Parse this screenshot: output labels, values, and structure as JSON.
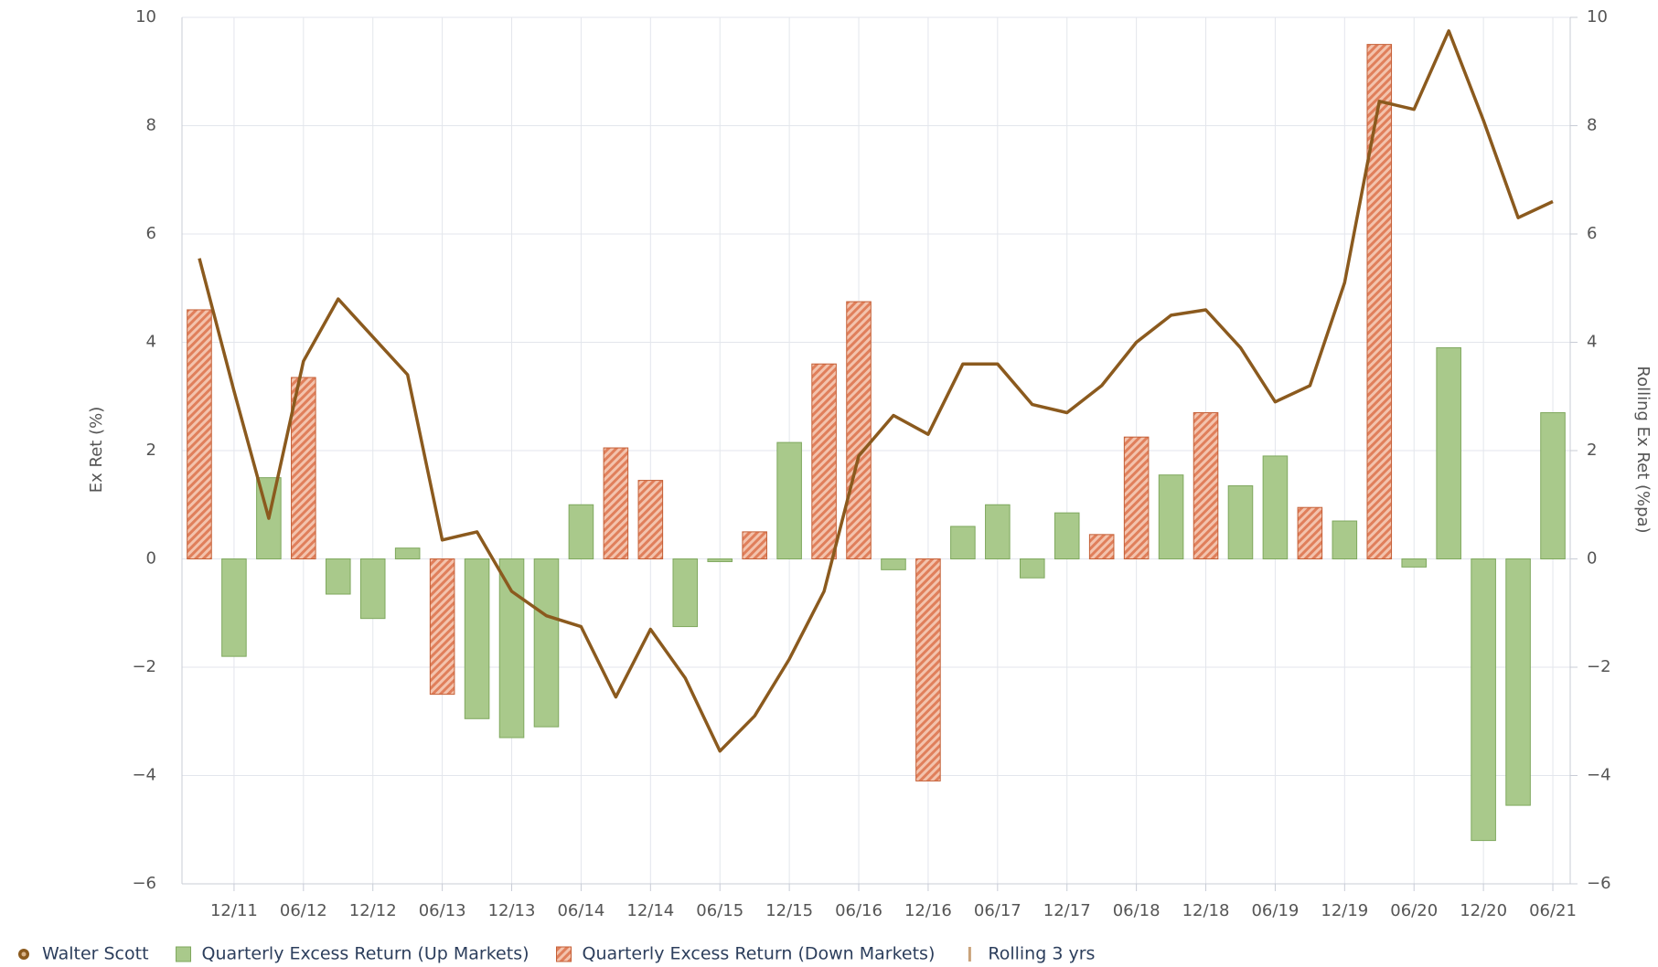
{
  "chart_data": {
    "type": "bar-line",
    "categories": [
      null,
      "12/11",
      null,
      "06/12",
      null,
      "12/12",
      null,
      "06/13",
      null,
      "12/13",
      null,
      "06/14",
      null,
      "12/14",
      null,
      "06/15",
      null,
      "12/15",
      null,
      "06/16",
      null,
      "12/16",
      null,
      "06/17",
      null,
      "12/17",
      null,
      "06/18",
      null,
      "12/18",
      null,
      "06/19",
      null,
      "12/19",
      null,
      "06/20",
      null,
      "12/20",
      null,
      "06/21"
    ],
    "y_label": "Ex Ret (%)",
    "y2_label": "Rolling Ex Ret (%pa)",
    "ylim": [
      -6,
      10
    ],
    "yticks": [
      {
        "value": -6,
        "label": "−6"
      },
      {
        "value": -4,
        "label": "−4"
      },
      {
        "value": -2,
        "label": "−2"
      },
      0,
      2,
      4,
      6,
      8,
      10
    ],
    "y2lim": [
      -6,
      10
    ],
    "y2ticks": [
      {
        "value": -6,
        "label": "−6"
      },
      {
        "value": -4,
        "label": "−4"
      },
      {
        "value": -2,
        "label": "−2"
      },
      0,
      2,
      4,
      6,
      8,
      10
    ],
    "grid": true,
    "legend": "bottom-left",
    "series": [
      {
        "name": "Walter Scott",
        "type": "line",
        "axis": "y2",
        "color": "#8b5a1e",
        "values": [
          5.55,
          3.1,
          0.75,
          3.65,
          4.8,
          4.1,
          3.4,
          0.35,
          0.5,
          -0.6,
          -1.05,
          -1.25,
          -2.55,
          -1.3,
          -2.2,
          -3.55,
          -2.9,
          -1.85,
          -0.6,
          1.9,
          2.65,
          2.3,
          3.6,
          3.6,
          2.85,
          2.7,
          3.2,
          4.0,
          4.5,
          4.6,
          3.9,
          2.9,
          3.2,
          5.1,
          8.45,
          8.3,
          9.75,
          8.1,
          6.3,
          6.6
        ]
      },
      {
        "name": "Quarterly Excess Return (Up Markets)",
        "type": "bar",
        "color": "#a9c98b",
        "edge": "#7fa85e",
        "values": [
          null,
          -1.8,
          1.5,
          null,
          -0.65,
          -1.1,
          0.2,
          null,
          -2.95,
          -3.3,
          -3.1,
          1.0,
          null,
          null,
          -1.25,
          -0.05,
          null,
          2.15,
          null,
          null,
          -0.2,
          null,
          0.6,
          1.0,
          -0.35,
          0.85,
          null,
          null,
          1.55,
          null,
          1.35,
          1.9,
          null,
          0.7,
          null,
          -0.15,
          3.9,
          -5.2,
          -4.55,
          2.7
        ]
      },
      {
        "name": "Quarterly Excess Return (Down Markets)",
        "type": "bar",
        "hatch": true,
        "color": "#e07f5b",
        "edge": "#c45f36",
        "values": [
          4.6,
          null,
          null,
          3.35,
          null,
          null,
          null,
          -2.5,
          null,
          null,
          null,
          null,
          2.05,
          1.45,
          null,
          null,
          0.5,
          null,
          3.6,
          4.75,
          null,
          -4.1,
          null,
          null,
          null,
          null,
          0.45,
          2.25,
          null,
          2.7,
          null,
          null,
          0.95,
          null,
          9.5,
          null,
          null,
          null,
          null,
          null
        ]
      }
    ],
    "legend_extra": [
      {
        "name": "Rolling 3 yrs",
        "color": "#c9a27a"
      }
    ]
  }
}
